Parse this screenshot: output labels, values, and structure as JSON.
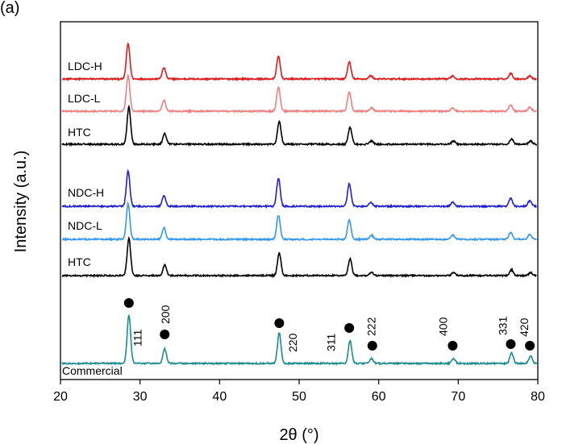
{
  "chart_data": {
    "type": "line",
    "panel_label": "(a)",
    "xlabel": "2θ  (°)",
    "ylabel": "Intensity (a.u.)",
    "xlim": [
      20,
      80
    ],
    "x_ticks": [
      20,
      30,
      40,
      50,
      60,
      70,
      80
    ],
    "grid": false,
    "series": [
      {
        "name": "LDC-H",
        "color": "#e31a1c",
        "peaks": [
          [
            28.5,
            44
          ],
          [
            33.0,
            14
          ],
          [
            47.4,
            28
          ],
          [
            56.3,
            21
          ],
          [
            59.0,
            4
          ],
          [
            69.3,
            4
          ],
          [
            76.6,
            7
          ],
          [
            79.0,
            4
          ]
        ]
      },
      {
        "name": "LDC-L",
        "color": "#f08080",
        "peaks": [
          [
            28.5,
            44
          ],
          [
            33.0,
            14
          ],
          [
            47.4,
            30
          ],
          [
            56.3,
            24
          ],
          [
            59.1,
            4
          ],
          [
            69.3,
            4
          ],
          [
            76.6,
            8
          ],
          [
            79.0,
            5
          ]
        ]
      },
      {
        "name": "HTC",
        "color": "#000000",
        "peaks": [
          [
            28.6,
            46
          ],
          [
            33.1,
            13
          ],
          [
            47.5,
            28
          ],
          [
            56.4,
            21
          ],
          [
            59.1,
            4
          ],
          [
            69.4,
            4
          ],
          [
            76.7,
            7
          ],
          [
            79.1,
            4
          ]
        ]
      },
      {
        "name": "NDC-H",
        "color": "#1f1fd6",
        "peaks": [
          [
            28.5,
            44
          ],
          [
            33.0,
            13
          ],
          [
            47.4,
            35
          ],
          [
            56.3,
            28
          ],
          [
            59.0,
            5
          ],
          [
            69.3,
            5
          ],
          [
            76.6,
            10
          ],
          [
            79.0,
            7
          ]
        ]
      },
      {
        "name": "NDC-L",
        "color": "#3399ee",
        "peaks": [
          [
            28.5,
            44
          ],
          [
            33.0,
            14
          ],
          [
            47.4,
            30
          ],
          [
            56.3,
            24
          ],
          [
            59.1,
            5
          ],
          [
            69.3,
            5
          ],
          [
            76.6,
            9
          ],
          [
            79.0,
            6
          ]
        ]
      },
      {
        "name": "HTC",
        "color": "#000000",
        "peaks": [
          [
            28.6,
            46
          ],
          [
            33.1,
            13
          ],
          [
            47.5,
            28
          ],
          [
            56.4,
            21
          ],
          [
            59.1,
            4
          ],
          [
            69.4,
            4
          ],
          [
            76.7,
            7
          ],
          [
            79.1,
            4
          ]
        ]
      },
      {
        "name": "Commercial",
        "color": "#1a8c8c",
        "peaks": [
          [
            28.6,
            60
          ],
          [
            33.1,
            18
          ],
          [
            47.5,
            38
          ],
          [
            56.4,
            28
          ],
          [
            59.1,
            6
          ],
          [
            69.4,
            6
          ],
          [
            76.7,
            13
          ],
          [
            79.1,
            9
          ]
        ]
      }
    ],
    "annotations": {
      "hkl": [
        "111",
        "200",
        "220",
        "311",
        "222",
        "400",
        "331",
        "420"
      ],
      "marker": "filled-circle"
    }
  }
}
